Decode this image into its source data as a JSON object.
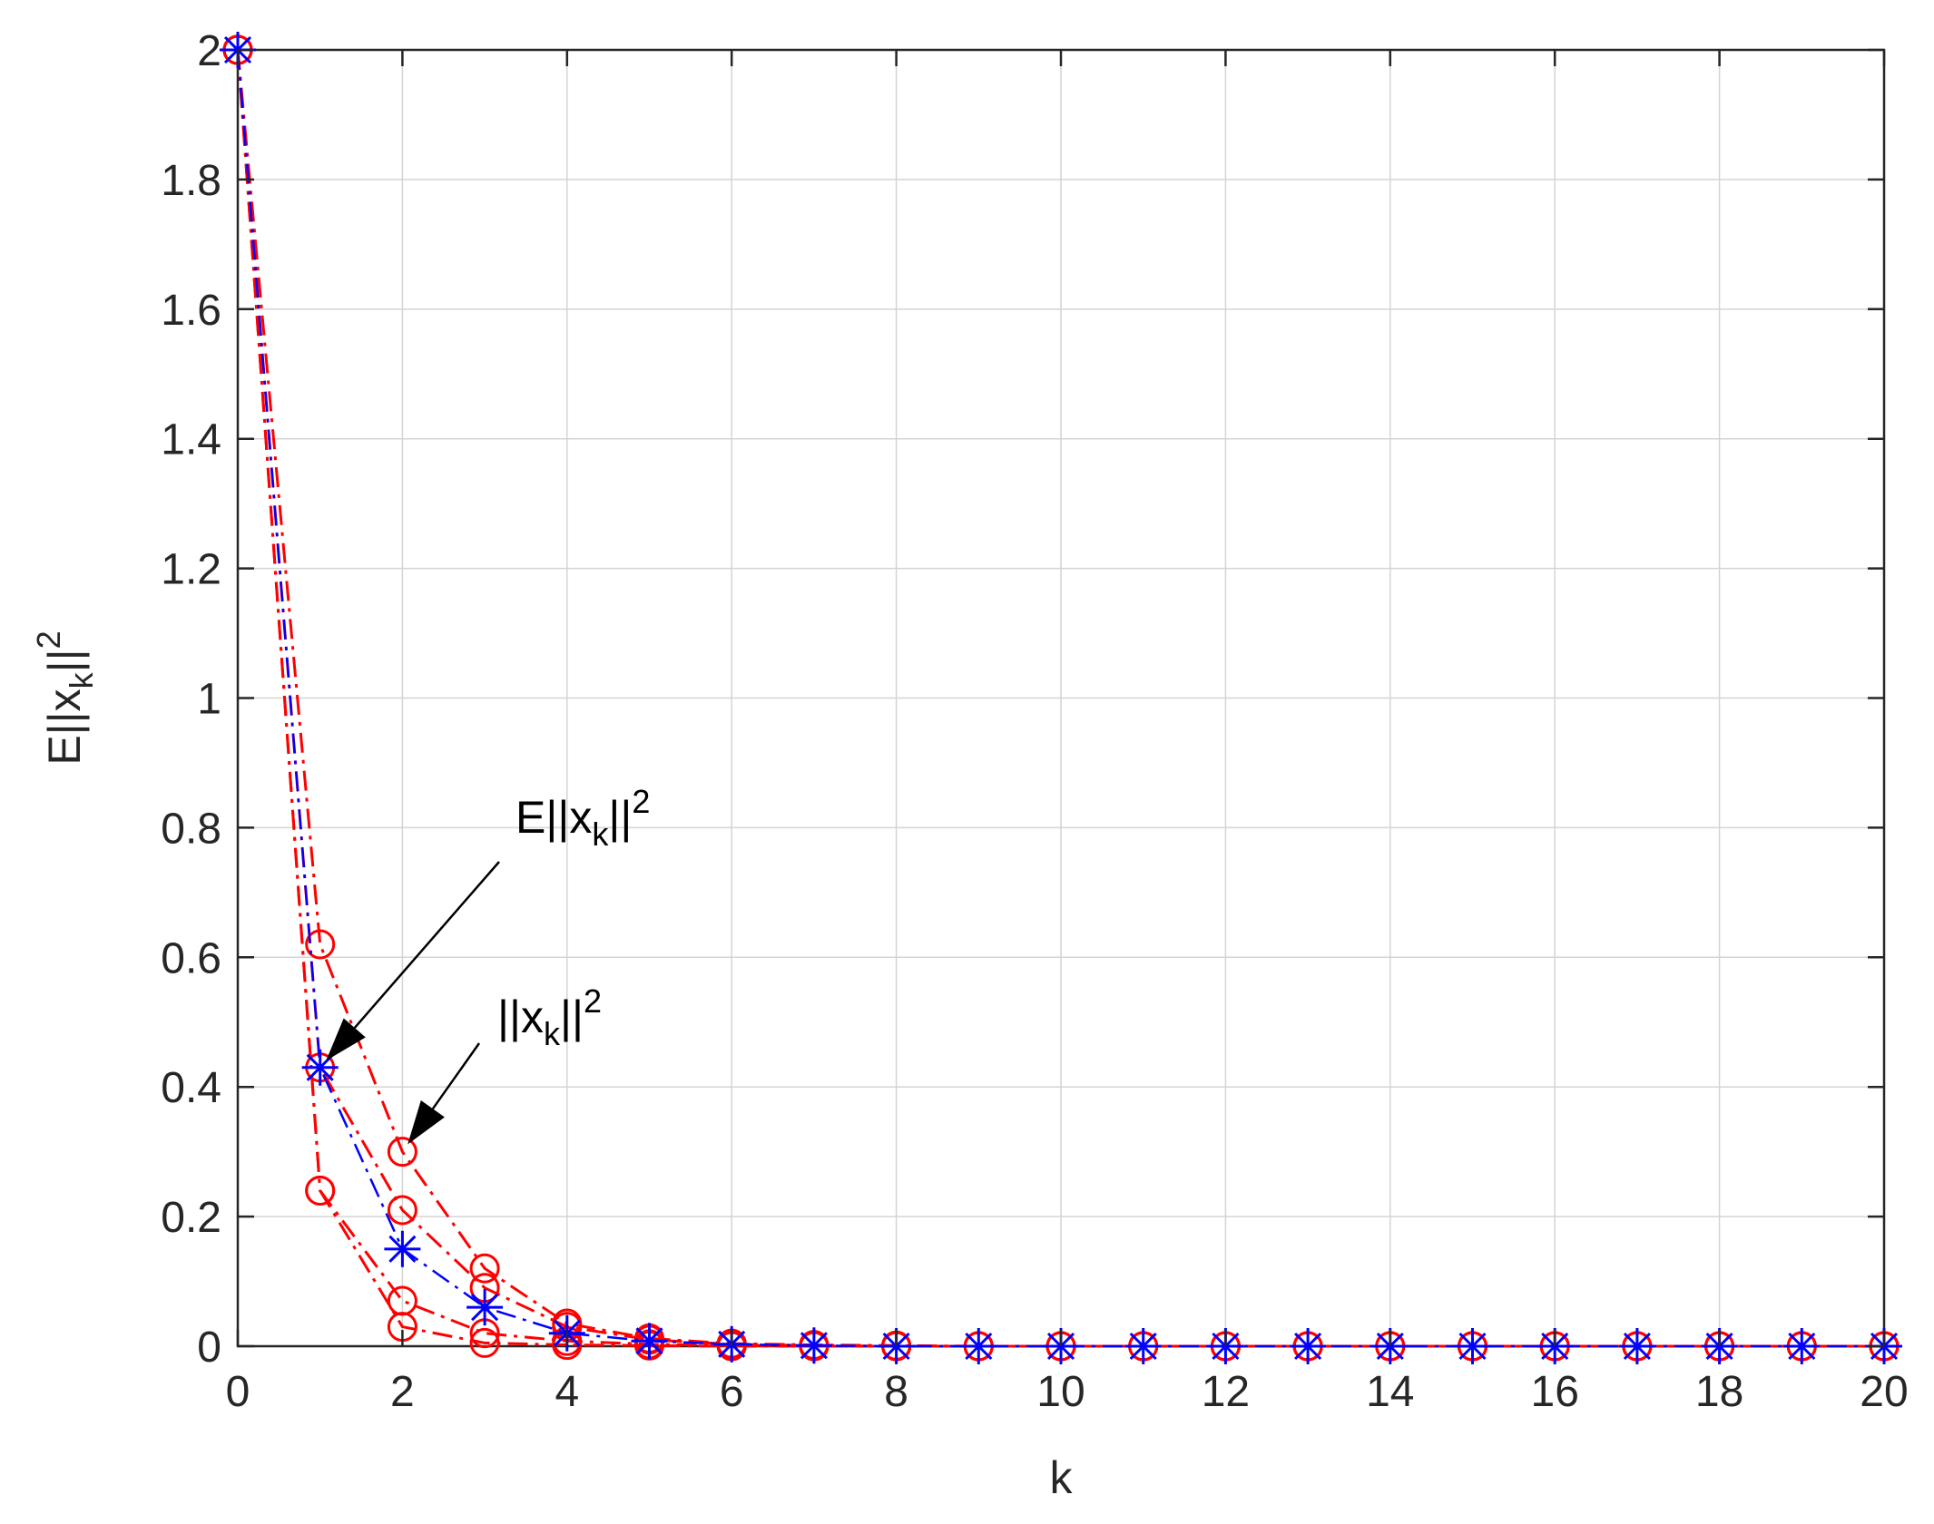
{
  "chart_data": {
    "type": "line",
    "xlabel": "k",
    "ylabel": {
      "base": "E||x",
      "sub": "k",
      "mid": "||",
      "sup": "2"
    },
    "xlim": [
      0,
      20
    ],
    "ylim": [
      0,
      2
    ],
    "xticks": [
      0,
      2,
      4,
      6,
      8,
      10,
      12,
      14,
      16,
      18,
      20
    ],
    "yticks": [
      0,
      0.2,
      0.4,
      0.6,
      0.8,
      1,
      1.2,
      1.4,
      1.6,
      1.8,
      2
    ],
    "ytick_labels": [
      "0",
      "0.2",
      "0.4",
      "0.6",
      "0.8",
      "1",
      "1.2",
      "1.4",
      "1.6",
      "1.8",
      "2"
    ],
    "grid": true,
    "annotations": [
      {
        "base": "E||x",
        "sub": "k",
        "mid": "||",
        "sup": "2",
        "points_to": {
          "x": 1,
          "y": 0.43
        }
      },
      {
        "base": "||x",
        "sub": "k",
        "mid": "||",
        "sup": "2",
        "points_to": {
          "x": 2,
          "y": 0.3
        }
      }
    ],
    "series": [
      {
        "marker": "circle",
        "color": "#ff0000",
        "linestyle": "dash-dot",
        "x": [
          0,
          1,
          2,
          3,
          4,
          5,
          6,
          7,
          8,
          9,
          10,
          11,
          12,
          13,
          14,
          15,
          16,
          17,
          18,
          19,
          20
        ],
        "y": [
          2,
          0.62,
          0.3,
          0.12,
          0.035,
          0.012,
          0.004,
          0.002,
          0.001,
          0,
          0,
          0,
          0,
          0,
          0,
          0,
          0,
          0,
          0,
          0,
          0
        ]
      },
      {
        "marker": "circle",
        "color": "#ff0000",
        "linestyle": "dash-dot",
        "x": [
          0,
          1,
          2,
          3,
          4,
          5,
          6,
          7,
          8,
          9,
          10,
          11,
          12,
          13,
          14,
          15,
          16,
          17,
          18,
          19,
          20
        ],
        "y": [
          2,
          0.43,
          0.21,
          0.09,
          0.03,
          0.01,
          0.003,
          0.001,
          0,
          0,
          0,
          0,
          0,
          0,
          0,
          0,
          0,
          0,
          0,
          0,
          0
        ]
      },
      {
        "marker": "circle",
        "color": "#ff0000",
        "linestyle": "dash-dot",
        "x": [
          0,
          1,
          2,
          3,
          4,
          5,
          6,
          7,
          8,
          9,
          10,
          11,
          12,
          13,
          14,
          15,
          16,
          17,
          18,
          19,
          20
        ],
        "y": [
          2,
          0.24,
          0.07,
          0.02,
          0.008,
          0.003,
          0.001,
          0,
          0,
          0,
          0,
          0,
          0,
          0,
          0,
          0,
          0,
          0,
          0,
          0,
          0
        ]
      },
      {
        "marker": "circle",
        "color": "#ff0000",
        "linestyle": "dash-dot",
        "x": [
          0,
          1,
          2,
          3,
          4,
          5,
          6,
          7,
          8,
          9,
          10,
          11,
          12,
          13,
          14,
          15,
          16,
          17,
          18,
          19,
          20
        ],
        "y": [
          2,
          0.24,
          0.03,
          0.005,
          0.002,
          0.001,
          0,
          0,
          0,
          0,
          0,
          0,
          0,
          0,
          0,
          0,
          0,
          0,
          0,
          0,
          0
        ]
      },
      {
        "marker": "star",
        "color": "#0000ff",
        "linestyle": "dash-dot",
        "x": [
          0,
          1,
          2,
          3,
          4,
          5,
          6,
          7,
          8,
          9,
          10,
          11,
          12,
          13,
          14,
          15,
          16,
          17,
          18,
          19,
          20
        ],
        "y": [
          2,
          0.43,
          0.15,
          0.06,
          0.02,
          0.008,
          0.003,
          0.001,
          0,
          0,
          0,
          0,
          0,
          0,
          0,
          0,
          0,
          0,
          0,
          0,
          0
        ]
      }
    ]
  }
}
